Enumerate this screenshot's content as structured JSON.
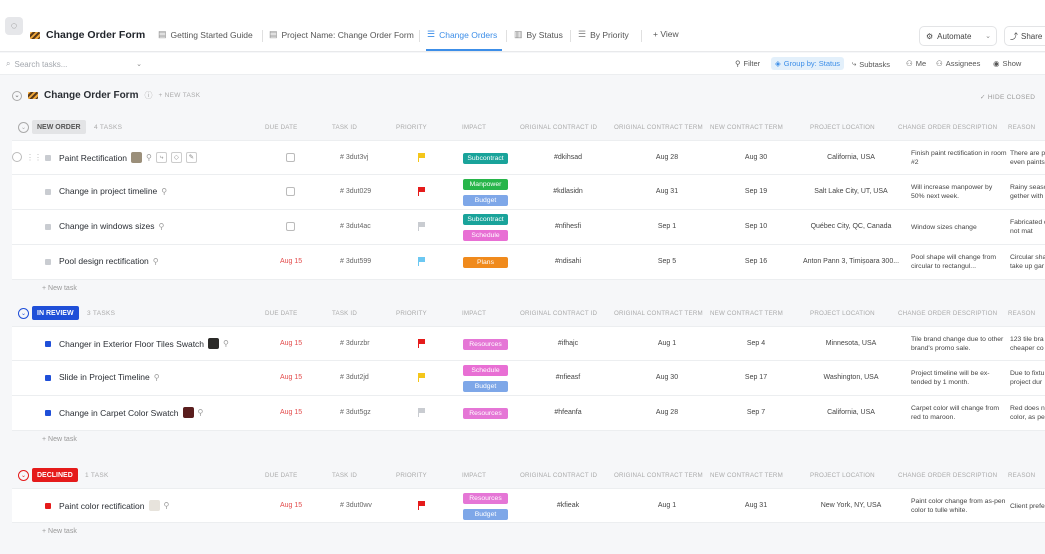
{
  "header": {
    "app_title": "Change Order Form",
    "tabs": [
      {
        "label": "Getting Started Guide",
        "icon": "doc-icon"
      },
      {
        "label": "Project Name: Change Order Form",
        "icon": "doc-icon"
      },
      {
        "label": "Change Orders",
        "icon": "list-icon",
        "active": true
      },
      {
        "label": "By Status",
        "icon": "board-icon"
      },
      {
        "label": "By Priority",
        "icon": "list-icon"
      },
      {
        "label": "+ View",
        "icon": "plus-icon"
      }
    ],
    "automate_label": "Automate",
    "share_label": "Share"
  },
  "filterbar": {
    "search_placeholder": "Search tasks...",
    "filter_label": "Filter",
    "group_by_label": "Group by: Status",
    "subtasks_label": "Subtasks",
    "me_label": "Me",
    "assignees_label": "Assignees",
    "show_label": "Show"
  },
  "list": {
    "title": "Change Order Form",
    "new_task_label": "+ NEW TASK",
    "hide_closed_label": "HIDE CLOSED"
  },
  "columns": {
    "due_date": "DUE DATE",
    "task_id": "TASK ID",
    "priority": "PRIORITY",
    "impact": "IMPACT",
    "original_contract_id": "ORIGINAL CONTRACT ID",
    "original_contract_term": "ORIGINAL CONTRACT TERM",
    "new_contract_term": "NEW CONTRACT TERM",
    "project_location": "PROJECT LOCATION",
    "change_order_description": "CHANGE ORDER DESCRIPTION",
    "reason": "REASON"
  },
  "add_task_label": "+ New task",
  "colors": {
    "accent": "#3c8ee8",
    "new_order": "#e3e4e6",
    "in_review": "#1f4fd8",
    "declined": "#e51b1b",
    "subcontract": "#19a39a",
    "manpower": "#27b54a",
    "budget": "#7ea7e8",
    "schedule": "#e86fd4",
    "plans": "#f08a1c",
    "resources": "#e576d6",
    "flag_yellow": "#f4c61b",
    "flag_red": "#e51b1b",
    "flag_blue": "#6cc8f2",
    "flag_gray": "#c9ccd1"
  },
  "groups": [
    {
      "status": "NEW ORDER",
      "count_label": "4 TASKS",
      "tasks": [
        {
          "name": "Paint Rectification",
          "due": "",
          "task_id": "# 3dut3vj",
          "priority": "yellow",
          "impact": [
            {
              "label": "Subcontract",
              "color": "subcontract"
            }
          ],
          "contract_id": "#dkihsad",
          "orig_term": "Aug 28",
          "new_term": "Aug 30",
          "location": "California, USA",
          "description": "Finish paint rectification in room #2",
          "reason": "There are p even paints"
        },
        {
          "name": "Change in project timeline",
          "due": "",
          "task_id": "# 3dut029",
          "priority": "red",
          "impact": [
            {
              "label": "Manpower",
              "color": "manpower"
            },
            {
              "label": "Budget",
              "color": "budget"
            }
          ],
          "contract_id": "#kdlasidn",
          "orig_term": "Aug 31",
          "new_term": "Sep 19",
          "location": "Salt Lake City, UT, USA",
          "description": "Will increase manpower by 50% next week.",
          "reason": "Rainy seaso gether with"
        },
        {
          "name": "Change in windows sizes",
          "due": "",
          "task_id": "# 3dut4ac",
          "priority": "gray",
          "impact": [
            {
              "label": "Subcontract",
              "color": "subcontract"
            },
            {
              "label": "Schedule",
              "color": "schedule"
            }
          ],
          "contract_id": "#nfihesfi",
          "orig_term": "Sep 1",
          "new_term": "Sep 10",
          "location": "Québec City, QC, Canada",
          "description": "Window sizes change",
          "reason": "Fabricated do not mat"
        },
        {
          "name": "Pool design rectification",
          "due": "Aug 15",
          "task_id": "# 3dut599",
          "priority": "blue",
          "impact": [
            {
              "label": "Plans",
              "color": "plans"
            }
          ],
          "contract_id": "#ndisahi",
          "orig_term": "Sep 5",
          "new_term": "Sep 16",
          "location": "Anton Pann 3, Timișoara 300...",
          "description": "Pool shape will change from circular to rectangul...",
          "reason": "Circular sha take up gar"
        }
      ]
    },
    {
      "status": "IN REVIEW",
      "count_label": "3 TASKS",
      "tasks": [
        {
          "name": "Changer in Exterior Floor Tiles Swatch",
          "due": "Aug 15",
          "task_id": "# 3durzbr",
          "priority": "red",
          "impact": [
            {
              "label": "Resources",
              "color": "resources"
            }
          ],
          "contract_id": "#ifhajc",
          "orig_term": "Aug 1",
          "new_term": "Sep 4",
          "location": "Minnesota, USA",
          "description": "Tile brand change due to other brand's promo sale.",
          "reason": "123 tile bra cheaper co"
        },
        {
          "name": "Slide in Project Timeline",
          "due": "Aug 15",
          "task_id": "# 3dut2jd",
          "priority": "yellow",
          "impact": [
            {
              "label": "Schedule",
              "color": "schedule"
            },
            {
              "label": "Budget",
              "color": "budget"
            }
          ],
          "contract_id": "#nfieasf",
          "orig_term": "Aug 30",
          "new_term": "Sep 17",
          "location": "Washington, USA",
          "description": "Project timeline will be ex-tended by 1 month.",
          "reason": "Due to fixtu project dur"
        },
        {
          "name": "Change in Carpet Color Swatch",
          "due": "Aug 15",
          "task_id": "# 3dut5gz",
          "priority": "gray",
          "impact": [
            {
              "label": "Resources",
              "color": "resources"
            }
          ],
          "contract_id": "#hfeanfa",
          "orig_term": "Aug 28",
          "new_term": "Sep 7",
          "location": "California, USA",
          "description": "Carpet color will change from red to maroon.",
          "reason": "Red does n color, as pe"
        }
      ]
    },
    {
      "status": "DECLINED",
      "count_label": "1 TASK",
      "tasks": [
        {
          "name": "Paint color rectification",
          "due": "Aug 15",
          "task_id": "# 3dut0wv",
          "priority": "red",
          "impact": [
            {
              "label": "Resources",
              "color": "resources"
            },
            {
              "label": "Budget",
              "color": "budget"
            }
          ],
          "contract_id": "#kfieak",
          "orig_term": "Aug 1",
          "new_term": "Aug 31",
          "location": "New York, NY, USA",
          "description": "Paint color change from as-pen color to tulle white.",
          "reason": "Client prefe"
        }
      ]
    }
  ]
}
